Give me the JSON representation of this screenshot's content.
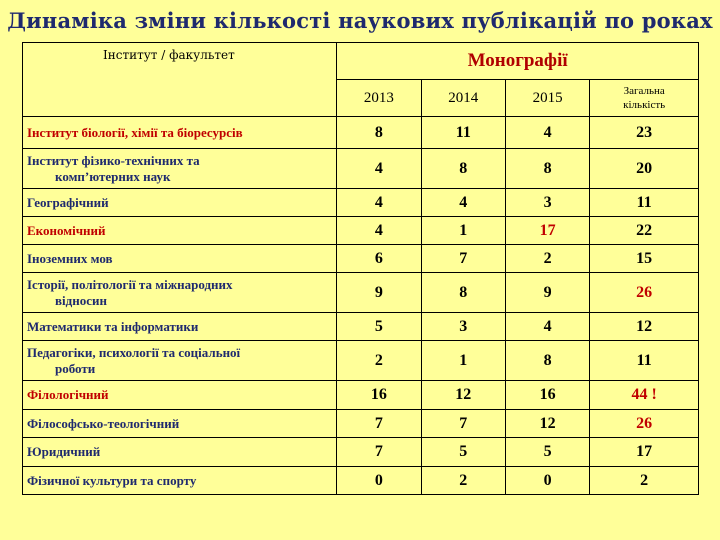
{
  "title": "Динаміка зміни кількості наукових публікацій по роках",
  "header": {
    "institute_label": "Інститут / факультет",
    "section_label": "Монографії",
    "years": [
      "2013",
      "2014",
      "2015"
    ],
    "total_label_line1": "Загальна",
    "total_label_line2": "кількість"
  },
  "rows": [
    {
      "name": "Інститут біології, хімії та біоресурсів",
      "name2": "",
      "v2013": "8",
      "v2014": "11",
      "v2015": "4",
      "total": "23"
    },
    {
      "name": "Інститут фізико-технічних та",
      "name2": "комп’ютерних наук",
      "v2013": "4",
      "v2014": "8",
      "v2015": "8",
      "total": "20"
    },
    {
      "name": "Географічний",
      "name2": "",
      "v2013": "4",
      "v2014": "4",
      "v2015": "3",
      "total": "11"
    },
    {
      "name": "Економічний",
      "name2": "",
      "v2013": "4",
      "v2014": "1",
      "v2015": "17",
      "total": "22"
    },
    {
      "name": "Іноземних мов",
      "name2": "",
      "v2013": "6",
      "v2014": "7",
      "v2015": "2",
      "total": "15"
    },
    {
      "name": "Історії, політології та міжнародних",
      "name2": "відносин",
      "v2013": "9",
      "v2014": "8",
      "v2015": "9",
      "total": "26"
    },
    {
      "name": "Математики та інформатики",
      "name2": "",
      "v2013": "5",
      "v2014": "3",
      "v2015": "4",
      "total": "12"
    },
    {
      "name": "Педагогіки, психології та соціальної",
      "name2": "роботи",
      "v2013": "2",
      "v2014": "1",
      "v2015": "8",
      "total": "11"
    },
    {
      "name": "Філологічний",
      "name2": "",
      "v2013": "16",
      "v2014": "12",
      "v2015": "16",
      "total": "44 !"
    },
    {
      "name": "Філософсько-теологічний",
      "name2": "",
      "v2013": "7",
      "v2014": "7",
      "v2015": "12",
      "total": "26"
    },
    {
      "name": "Юридичний",
      "name2": "",
      "v2013": "7",
      "v2014": "5",
      "v2015": "5",
      "total": "17"
    },
    {
      "name": "Фізичної культури та спорту",
      "name2": "",
      "v2013": "0",
      "v2014": "2",
      "v2015": "0",
      "total": "2"
    }
  ],
  "colors": {
    "background": "#ffff99",
    "title": "#1f2a6e",
    "accent_red": "#c00000"
  }
}
